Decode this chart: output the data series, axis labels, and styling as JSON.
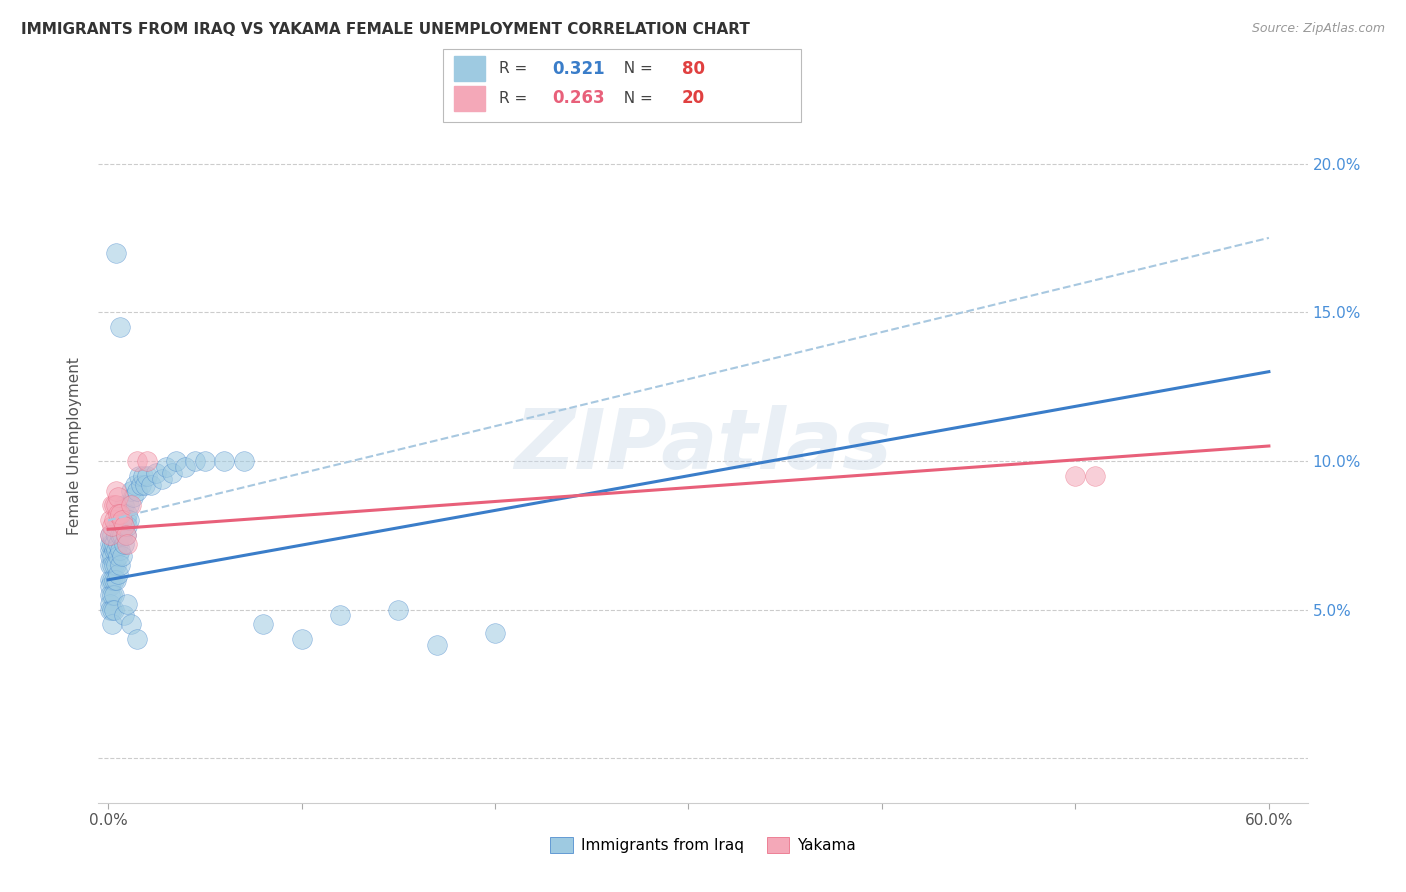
{
  "title": "IMMIGRANTS FROM IRAQ VS YAKAMA FEMALE UNEMPLOYMENT CORRELATION CHART",
  "source": "Source: ZipAtlas.com",
  "ylabel": "Female Unemployment",
  "blue_R": "0.321",
  "blue_N": "80",
  "pink_R": "0.263",
  "pink_N": "20",
  "blue_color": "#9ECAE1",
  "pink_color": "#F4A8B8",
  "blue_line_color": "#3A7DC9",
  "pink_line_color": "#E8607A",
  "dashed_line_color": "#A8C8E0",
  "watermark_text": "ZIPatlas",
  "blue_scatter_x": [
    0.001,
    0.001,
    0.001,
    0.001,
    0.001,
    0.001,
    0.001,
    0.001,
    0.001,
    0.001,
    0.002,
    0.002,
    0.002,
    0.002,
    0.002,
    0.002,
    0.002,
    0.002,
    0.003,
    0.003,
    0.003,
    0.003,
    0.003,
    0.003,
    0.004,
    0.004,
    0.004,
    0.004,
    0.004,
    0.005,
    0.005,
    0.005,
    0.005,
    0.006,
    0.006,
    0.006,
    0.007,
    0.007,
    0.007,
    0.008,
    0.008,
    0.008,
    0.009,
    0.009,
    0.01,
    0.01,
    0.011,
    0.011,
    0.012,
    0.013,
    0.014,
    0.015,
    0.016,
    0.017,
    0.018,
    0.019,
    0.02,
    0.022,
    0.025,
    0.028,
    0.03,
    0.033,
    0.035,
    0.04,
    0.045,
    0.05,
    0.06,
    0.07,
    0.08,
    0.1,
    0.12,
    0.15,
    0.17,
    0.2,
    0.004,
    0.006,
    0.008,
    0.01,
    0.012,
    0.015
  ],
  "blue_scatter_y": [
    0.065,
    0.068,
    0.07,
    0.072,
    0.075,
    0.06,
    0.058,
    0.055,
    0.052,
    0.05,
    0.068,
    0.072,
    0.075,
    0.065,
    0.06,
    0.055,
    0.05,
    0.045,
    0.07,
    0.072,
    0.065,
    0.06,
    0.055,
    0.05,
    0.075,
    0.078,
    0.07,
    0.065,
    0.06,
    0.08,
    0.072,
    0.068,
    0.062,
    0.075,
    0.07,
    0.065,
    0.082,
    0.075,
    0.068,
    0.085,
    0.078,
    0.072,
    0.08,
    0.075,
    0.082,
    0.078,
    0.085,
    0.08,
    0.09,
    0.088,
    0.092,
    0.09,
    0.095,
    0.092,
    0.095,
    0.092,
    0.095,
    0.092,
    0.096,
    0.094,
    0.098,
    0.096,
    0.1,
    0.098,
    0.1,
    0.1,
    0.1,
    0.1,
    0.045,
    0.04,
    0.048,
    0.05,
    0.038,
    0.042,
    0.17,
    0.145,
    0.048,
    0.052,
    0.045,
    0.04
  ],
  "pink_scatter_x": [
    0.001,
    0.001,
    0.002,
    0.002,
    0.003,
    0.003,
    0.004,
    0.004,
    0.005,
    0.005,
    0.006,
    0.007,
    0.008,
    0.009,
    0.01,
    0.012,
    0.015,
    0.02,
    0.5,
    0.51
  ],
  "pink_scatter_y": [
    0.08,
    0.075,
    0.085,
    0.078,
    0.085,
    0.08,
    0.09,
    0.085,
    0.088,
    0.082,
    0.082,
    0.08,
    0.078,
    0.075,
    0.072,
    0.085,
    0.1,
    0.1,
    0.095,
    0.095
  ],
  "blue_line_x": [
    0.0,
    0.6
  ],
  "blue_line_y": [
    0.06,
    0.13
  ],
  "pink_line_x": [
    0.0,
    0.6
  ],
  "pink_line_y": [
    0.077,
    0.105
  ],
  "dashed_line_x": [
    0.0,
    0.6
  ],
  "dashed_line_y": [
    0.08,
    0.175
  ],
  "x_tick_pos": [
    0.0,
    0.1,
    0.2,
    0.3,
    0.4,
    0.5,
    0.6
  ],
  "x_tick_labels": [
    "0.0%",
    "",
    "",
    "",
    "",
    "",
    "60.0%"
  ],
  "y_tick_pos": [
    0.0,
    0.05,
    0.1,
    0.15,
    0.2
  ],
  "y_right_labels": [
    "",
    "5.0%",
    "10.0%",
    "15.0%",
    "20.0%"
  ],
  "xlim": [
    -0.005,
    0.62
  ],
  "ylim": [
    -0.015,
    0.225
  ]
}
